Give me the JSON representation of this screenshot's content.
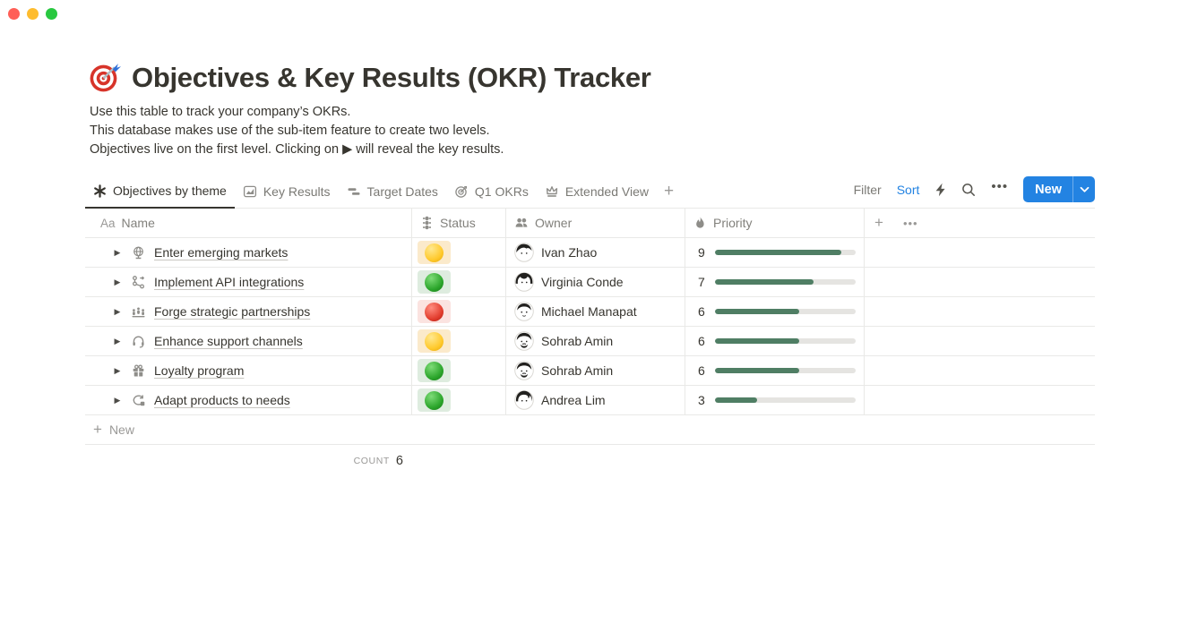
{
  "window": {
    "controls": [
      "close-button",
      "minimize-button",
      "zoom-button"
    ]
  },
  "page": {
    "emoji": "dart-target",
    "title": "Objectives & Key Results (OKR) Tracker",
    "description_lines": [
      "Use this table to track your company’s OKRs.",
      "This database makes use of the sub-item feature to create two levels.",
      "Objectives live on the first level. Clicking on ▶ will reveal the key results."
    ]
  },
  "tabs": {
    "items": [
      {
        "label": "Objectives by theme",
        "icon": "asterisk-icon",
        "active": true
      },
      {
        "label": "Key Results",
        "icon": "chart-icon",
        "active": false
      },
      {
        "label": "Target Dates",
        "icon": "timeline-icon",
        "active": false
      },
      {
        "label": "Q1 OKRs",
        "icon": "target-icon",
        "active": false
      },
      {
        "label": "Extended View",
        "icon": "crown-icon",
        "active": false
      }
    ],
    "add_label": "+"
  },
  "toolbar": {
    "filter_label": "Filter",
    "sort_label": "Sort",
    "icons": [
      "lightning-icon",
      "search-icon",
      "more-icon"
    ],
    "more_glyph": "•••",
    "new_label": "New",
    "accent_color": "#2383E2"
  },
  "table": {
    "columns": [
      {
        "label": "Name",
        "icon": "text-Aa-icon",
        "icon_glyph": "Aa"
      },
      {
        "label": "Status",
        "icon": "traffic-light-icon"
      },
      {
        "label": "Owner",
        "icon": "people-icon"
      },
      {
        "label": "Priority",
        "icon": "flame-icon"
      }
    ],
    "header_extra": {
      "add_label": "+",
      "more_glyph": "•••"
    },
    "priority_max": 10,
    "priority_bar_color": "#4F7E64",
    "status_colors": {
      "yellow": "#FFC92B",
      "green": "#2BA52B",
      "red": "#E23D2E"
    },
    "rows": [
      {
        "name": "Enter emerging markets",
        "icon": "globe-icon",
        "status": "yellow",
        "owner": "Ivan Zhao",
        "priority": 9
      },
      {
        "name": "Implement API integrations",
        "icon": "workflow-icon",
        "status": "green",
        "owner": "Virginia Conde",
        "priority": 7
      },
      {
        "name": "Forge strategic partnerships",
        "icon": "team-icon",
        "status": "red",
        "owner": "Michael Manapat",
        "priority": 6
      },
      {
        "name": "Enhance support channels",
        "icon": "headset-icon",
        "status": "yellow",
        "owner": "Sohrab Amin",
        "priority": 6
      },
      {
        "name": "Loyalty program",
        "icon": "gift-icon",
        "status": "green",
        "owner": "Sohrab Amin",
        "priority": 6
      },
      {
        "name": "Adapt products to needs",
        "icon": "sync-icon",
        "status": "green",
        "owner": "Andrea Lim",
        "priority": 3
      }
    ],
    "new_row_label": "New",
    "footer": {
      "count_label": "COUNT",
      "count_value": "6"
    }
  }
}
